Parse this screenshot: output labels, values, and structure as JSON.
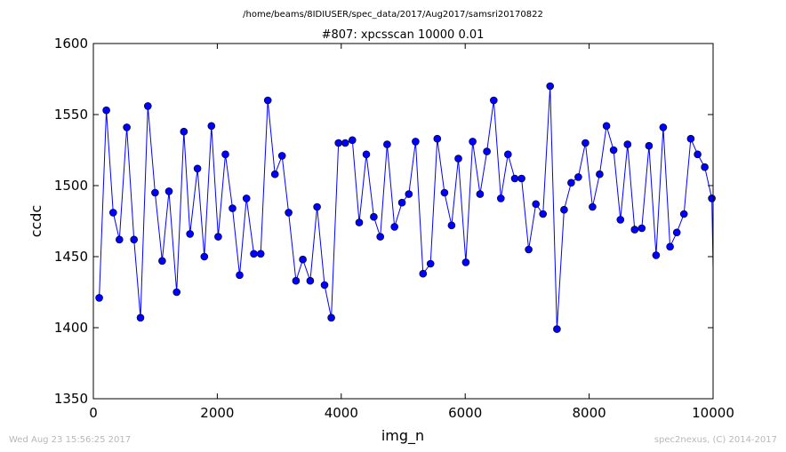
{
  "chart_data": {
    "type": "line",
    "suptitle": "/home/beams/8IDIUSER/spec_data/2017/Aug2017/samsri20170822",
    "title": "#807: xpcsscan 10000 0.01",
    "xlabel": "img_n",
    "ylabel": "ccdc",
    "xlim": [
      0,
      10000
    ],
    "ylim": [
      1350,
      1600
    ],
    "xticks": [
      0,
      2000,
      4000,
      6000,
      8000,
      10000
    ],
    "yticks": [
      1350,
      1400,
      1450,
      1500,
      1550,
      1600
    ],
    "grid": false,
    "line_color": "#0000ff",
    "marker_color": "#0000ff",
    "series": [
      {
        "x": [
          95,
          210,
          320,
          420,
          540,
          655,
          760,
          880,
          995,
          1110,
          1220,
          1345,
          1460,
          1560,
          1680,
          1790,
          1905,
          2015,
          2130,
          2245,
          2360,
          2470,
          2590,
          2700,
          2815,
          2930,
          3045,
          3150,
          3270,
          3380,
          3500,
          3610,
          3730,
          3840,
          3955,
          4065,
          4180,
          4290,
          4405,
          4525,
          4630,
          4740,
          4860,
          4980,
          5090,
          5200,
          5320,
          5440,
          5550,
          5665,
          5780,
          5890,
          6010,
          6120,
          6240,
          6350,
          6460,
          6575,
          6690,
          6800,
          6910,
          7025,
          7140,
          7255,
          7370,
          7480,
          7595,
          7710,
          7825,
          7940,
          8055,
          8170,
          8280,
          8395,
          8505,
          8620,
          8735,
          8850,
          8965,
          9080,
          9195,
          9305,
          9415,
          9530,
          9640,
          9750,
          9865,
          9980,
          10000
        ],
        "y": [
          1421,
          1553,
          1481,
          1462,
          1541,
          1462,
          1407,
          1556,
          1495,
          1447,
          1496,
          1425,
          1538,
          1466,
          1512,
          1450,
          1542,
          1464,
          1522,
          1484,
          1437,
          1491,
          1452,
          1452,
          1560,
          1508,
          1521,
          1481,
          1433,
          1448,
          1433,
          1485,
          1430,
          1407,
          1530,
          1530,
          1532,
          1474,
          1522,
          1478,
          1464,
          1529,
          1471,
          1488,
          1494,
          1531,
          1438,
          1445,
          1533,
          1495,
          1472,
          1519,
          1446,
          1531,
          1494,
          1524,
          1560,
          1491,
          1522,
          1505,
          1505,
          1455,
          1487,
          1480,
          1570,
          1399,
          1483,
          1502,
          1506,
          1530,
          1485,
          1508,
          1542,
          1525,
          1476,
          1529,
          1469,
          1470,
          1528,
          1451,
          1541,
          1457,
          1467,
          1480,
          1533,
          1522,
          1513,
          1491,
          1442
        ]
      }
    ]
  },
  "footer": {
    "timestamp": "Wed Aug 23 15:56:25 2017",
    "credit": "spec2nexus, (C) 2014-2017"
  }
}
